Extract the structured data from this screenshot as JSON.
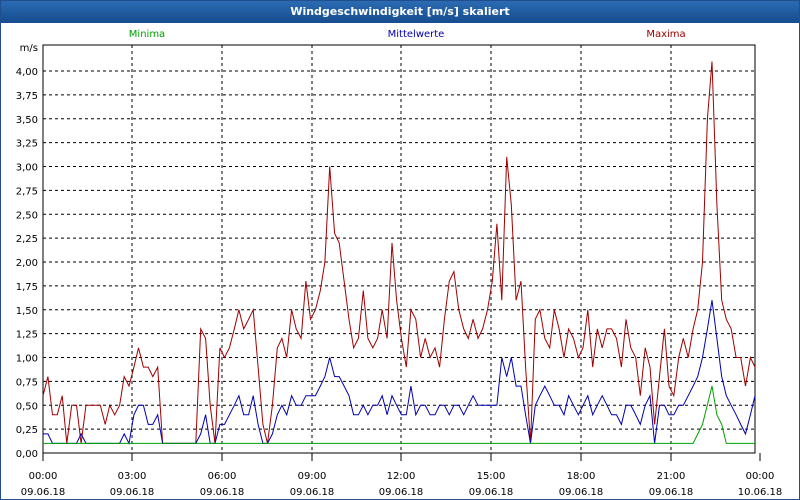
{
  "window": {
    "title": "Windgeschwindigkeit [m/s] skaliert"
  },
  "colors": {
    "minima": "#00a000",
    "mittel": "#0000b0",
    "maxima": "#a00000",
    "grid": "#000000",
    "titlebar": "#1f5aa0"
  },
  "chart_data": {
    "type": "line",
    "title": "Windgeschwindigkeit [m/s] skaliert",
    "ylabel": "m/s",
    "ylim": [
      0,
      4.25
    ],
    "yticks": [
      "0,00",
      "0,25",
      "0,50",
      "0,75",
      "1,00",
      "1,25",
      "1,50",
      "1,75",
      "2,00",
      "2,25",
      "2,50",
      "2,75",
      "3,00",
      "3,25",
      "3,50",
      "3,75",
      "4,00"
    ],
    "xlim": [
      0,
      24
    ],
    "xticks": [
      {
        "time": "00:00",
        "date": "09.06.18"
      },
      {
        "time": "03:00",
        "date": "09.06.18"
      },
      {
        "time": "06:00",
        "date": "09.06.18"
      },
      {
        "time": "09:00",
        "date": "09.06.18"
      },
      {
        "time": "12:00",
        "date": "09.06.18"
      },
      {
        "time": "15:00",
        "date": "09.06.18"
      },
      {
        "time": "18:00",
        "date": "09.06.18"
      },
      {
        "time": "21:00",
        "date": "09.06.18"
      },
      {
        "time": "00:00",
        "date": "10.06.18"
      }
    ],
    "legend": [
      "Minima",
      "Mittelwerte",
      "Maxima"
    ],
    "grid": true,
    "series": [
      {
        "name": "Maxima",
        "color": "#a00000",
        "points": [
          [
            0.0,
            0.6
          ],
          [
            0.17,
            0.8
          ],
          [
            0.33,
            0.4
          ],
          [
            0.5,
            0.4
          ],
          [
            0.67,
            0.6
          ],
          [
            0.83,
            0.1
          ],
          [
            1.0,
            0.5
          ],
          [
            1.17,
            0.5
          ],
          [
            1.33,
            0.1
          ],
          [
            1.5,
            0.5
          ],
          [
            1.67,
            0.5
          ],
          [
            1.83,
            0.5
          ],
          [
            2.0,
            0.5
          ],
          [
            2.17,
            0.3
          ],
          [
            2.33,
            0.5
          ],
          [
            2.5,
            0.4
          ],
          [
            2.67,
            0.5
          ],
          [
            2.83,
            0.8
          ],
          [
            3.0,
            0.7
          ],
          [
            3.17,
            0.9
          ],
          [
            3.33,
            1.1
          ],
          [
            3.5,
            0.9
          ],
          [
            3.67,
            0.9
          ],
          [
            3.83,
            0.8
          ],
          [
            4.0,
            0.9
          ],
          [
            4.17,
            0.1
          ],
          [
            4.33,
            0.1
          ],
          [
            4.5,
            0.1
          ],
          [
            4.67,
            0.1
          ],
          [
            4.83,
            0.1
          ],
          [
            5.0,
            0.1
          ],
          [
            5.17,
            0.1
          ],
          [
            5.33,
            0.1
          ],
          [
            5.5,
            1.3
          ],
          [
            5.67,
            1.2
          ],
          [
            5.83,
            0.5
          ],
          [
            6.0,
            0.1
          ],
          [
            6.17,
            1.1
          ],
          [
            6.33,
            1.0
          ],
          [
            6.5,
            1.1
          ],
          [
            6.67,
            1.3
          ],
          [
            6.83,
            1.5
          ],
          [
            7.0,
            1.3
          ],
          [
            7.17,
            1.4
          ],
          [
            7.33,
            1.5
          ],
          [
            7.5,
            0.9
          ],
          [
            7.67,
            0.3
          ],
          [
            7.83,
            0.1
          ],
          [
            8.0,
            0.5
          ],
          [
            8.17,
            1.1
          ],
          [
            8.33,
            1.2
          ],
          [
            8.5,
            1.0
          ],
          [
            8.67,
            1.5
          ],
          [
            8.83,
            1.3
          ],
          [
            9.0,
            1.2
          ],
          [
            9.17,
            1.8
          ],
          [
            9.33,
            1.4
          ],
          [
            9.5,
            1.5
          ],
          [
            9.67,
            1.7
          ],
          [
            9.83,
            2.0
          ],
          [
            10.0,
            3.0
          ],
          [
            10.17,
            2.3
          ],
          [
            10.33,
            2.2
          ],
          [
            10.5,
            1.8
          ],
          [
            10.67,
            1.4
          ],
          [
            10.83,
            1.1
          ],
          [
            11.0,
            1.2
          ],
          [
            11.17,
            1.7
          ],
          [
            11.33,
            1.2
          ],
          [
            11.5,
            1.1
          ],
          [
            11.67,
            1.2
          ],
          [
            11.83,
            1.5
          ],
          [
            12.0,
            1.2
          ],
          [
            12.17,
            2.2
          ],
          [
            12.33,
            1.6
          ],
          [
            12.5,
            1.2
          ],
          [
            12.67,
            0.9
          ],
          [
            12.83,
            1.5
          ],
          [
            13.0,
            1.4
          ],
          [
            13.17,
            1.0
          ],
          [
            13.33,
            1.2
          ],
          [
            13.5,
            1.0
          ],
          [
            13.67,
            1.1
          ],
          [
            13.83,
            0.9
          ],
          [
            14.0,
            1.4
          ],
          [
            14.17,
            1.8
          ],
          [
            14.33,
            1.9
          ],
          [
            14.5,
            1.5
          ],
          [
            14.67,
            1.3
          ],
          [
            14.83,
            1.2
          ],
          [
            15.0,
            1.4
          ],
          [
            15.17,
            1.2
          ],
          [
            15.33,
            1.3
          ],
          [
            15.5,
            1.5
          ],
          [
            15.67,
            1.8
          ],
          [
            15.83,
            2.4
          ],
          [
            16.0,
            1.6
          ],
          [
            16.17,
            3.1
          ],
          [
            16.33,
            2.6
          ],
          [
            16.5,
            1.6
          ],
          [
            16.67,
            1.8
          ],
          [
            16.83,
            0.9
          ],
          [
            17.0,
            0.1
          ],
          [
            17.17,
            1.4
          ],
          [
            17.33,
            1.5
          ],
          [
            17.5,
            1.2
          ],
          [
            17.67,
            1.1
          ],
          [
            17.83,
            1.5
          ],
          [
            18.0,
            1.3
          ],
          [
            18.17,
            1.0
          ],
          [
            18.33,
            1.3
          ],
          [
            18.5,
            1.2
          ],
          [
            18.67,
            1.0
          ],
          [
            18.83,
            1.1
          ],
          [
            19.0,
            1.5
          ],
          [
            19.17,
            0.9
          ],
          [
            19.33,
            1.3
          ],
          [
            19.5,
            1.1
          ],
          [
            19.67,
            1.3
          ],
          [
            19.83,
            1.3
          ],
          [
            20.0,
            1.2
          ],
          [
            20.17,
            0.9
          ],
          [
            20.33,
            1.4
          ],
          [
            20.5,
            1.1
          ],
          [
            20.67,
            1.0
          ],
          [
            20.83,
            0.6
          ],
          [
            21.0,
            1.1
          ],
          [
            21.17,
            0.9
          ],
          [
            21.33,
            0.3
          ],
          [
            21.5,
            0.8
          ],
          [
            21.67,
            1.3
          ],
          [
            21.83,
            0.7
          ],
          [
            22.0,
            0.6
          ],
          [
            22.17,
            1.0
          ],
          [
            22.33,
            1.2
          ],
          [
            22.5,
            1.0
          ],
          [
            22.67,
            1.3
          ],
          [
            22.83,
            1.5
          ],
          [
            23.0,
            2.0
          ],
          [
            23.17,
            3.5
          ],
          [
            23.33,
            4.1
          ],
          [
            23.5,
            2.6
          ],
          [
            23.67,
            1.6
          ],
          [
            23.83,
            1.4
          ],
          [
            24.0,
            1.3
          ],
          [
            24.17,
            1.0
          ],
          [
            24.33,
            1.0
          ],
          [
            24.5,
            0.7
          ],
          [
            24.67,
            1.0
          ],
          [
            24.83,
            0.9
          ]
        ]
      },
      {
        "name": "Mittelwerte",
        "color": "#0000b0",
        "points": [
          [
            0.0,
            0.2
          ],
          [
            0.17,
            0.2
          ],
          [
            0.33,
            0.1
          ],
          [
            0.5,
            0.1
          ],
          [
            0.67,
            0.1
          ],
          [
            0.83,
            0.1
          ],
          [
            1.0,
            0.1
          ],
          [
            1.17,
            0.1
          ],
          [
            1.33,
            0.2
          ],
          [
            1.5,
            0.1
          ],
          [
            1.67,
            0.1
          ],
          [
            1.83,
            0.1
          ],
          [
            2.0,
            0.1
          ],
          [
            2.17,
            0.1
          ],
          [
            2.33,
            0.1
          ],
          [
            2.5,
            0.1
          ],
          [
            2.67,
            0.1
          ],
          [
            2.83,
            0.2
          ],
          [
            3.0,
            0.1
          ],
          [
            3.17,
            0.4
          ],
          [
            3.33,
            0.5
          ],
          [
            3.5,
            0.5
          ],
          [
            3.67,
            0.3
          ],
          [
            3.83,
            0.3
          ],
          [
            4.0,
            0.4
          ],
          [
            4.17,
            0.1
          ],
          [
            4.33,
            0.1
          ],
          [
            4.5,
            0.1
          ],
          [
            4.67,
            0.1
          ],
          [
            4.83,
            0.1
          ],
          [
            5.0,
            0.1
          ],
          [
            5.17,
            0.1
          ],
          [
            5.33,
            0.1
          ],
          [
            5.5,
            0.2
          ],
          [
            5.67,
            0.4
          ],
          [
            5.83,
            0.1
          ],
          [
            6.0,
            0.1
          ],
          [
            6.17,
            0.3
          ],
          [
            6.33,
            0.3
          ],
          [
            6.5,
            0.4
          ],
          [
            6.67,
            0.5
          ],
          [
            6.83,
            0.6
          ],
          [
            7.0,
            0.4
          ],
          [
            7.17,
            0.4
          ],
          [
            7.33,
            0.6
          ],
          [
            7.5,
            0.3
          ],
          [
            7.67,
            0.1
          ],
          [
            7.83,
            0.1
          ],
          [
            8.0,
            0.2
          ],
          [
            8.17,
            0.4
          ],
          [
            8.33,
            0.5
          ],
          [
            8.5,
            0.4
          ],
          [
            8.67,
            0.6
          ],
          [
            8.83,
            0.5
          ],
          [
            9.0,
            0.5
          ],
          [
            9.17,
            0.6
          ],
          [
            9.33,
            0.6
          ],
          [
            9.5,
            0.6
          ],
          [
            9.67,
            0.7
          ],
          [
            9.83,
            0.8
          ],
          [
            10.0,
            1.0
          ],
          [
            10.17,
            0.8
          ],
          [
            10.33,
            0.8
          ],
          [
            10.5,
            0.7
          ],
          [
            10.67,
            0.6
          ],
          [
            10.83,
            0.4
          ],
          [
            11.0,
            0.4
          ],
          [
            11.17,
            0.5
          ],
          [
            11.33,
            0.4
          ],
          [
            11.5,
            0.5
          ],
          [
            11.67,
            0.5
          ],
          [
            11.83,
            0.6
          ],
          [
            12.0,
            0.4
          ],
          [
            12.17,
            0.6
          ],
          [
            12.33,
            0.5
          ],
          [
            12.5,
            0.4
          ],
          [
            12.67,
            0.4
          ],
          [
            12.83,
            0.7
          ],
          [
            13.0,
            0.4
          ],
          [
            13.17,
            0.5
          ],
          [
            13.33,
            0.5
          ],
          [
            13.5,
            0.4
          ],
          [
            13.67,
            0.4
          ],
          [
            13.83,
            0.5
          ],
          [
            14.0,
            0.5
          ],
          [
            14.17,
            0.4
          ],
          [
            14.33,
            0.5
          ],
          [
            14.5,
            0.5
          ],
          [
            14.67,
            0.4
          ],
          [
            14.83,
            0.5
          ],
          [
            15.0,
            0.6
          ],
          [
            15.17,
            0.5
          ],
          [
            15.33,
            0.5
          ],
          [
            15.5,
            0.5
          ],
          [
            15.67,
            0.5
          ],
          [
            15.83,
            0.5
          ],
          [
            16.0,
            1.0
          ],
          [
            16.17,
            0.8
          ],
          [
            16.33,
            1.0
          ],
          [
            16.5,
            0.7
          ],
          [
            16.67,
            0.7
          ],
          [
            16.83,
            0.4
          ],
          [
            17.0,
            0.1
          ],
          [
            17.17,
            0.5
          ],
          [
            17.33,
            0.6
          ],
          [
            17.5,
            0.7
          ],
          [
            17.67,
            0.6
          ],
          [
            17.83,
            0.5
          ],
          [
            18.0,
            0.5
          ],
          [
            18.17,
            0.4
          ],
          [
            18.33,
            0.6
          ],
          [
            18.5,
            0.5
          ],
          [
            18.67,
            0.4
          ],
          [
            18.83,
            0.5
          ],
          [
            19.0,
            0.6
          ],
          [
            19.17,
            0.4
          ],
          [
            19.33,
            0.5
          ],
          [
            19.5,
            0.6
          ],
          [
            19.67,
            0.5
          ],
          [
            19.83,
            0.4
          ],
          [
            20.0,
            0.4
          ],
          [
            20.17,
            0.3
          ],
          [
            20.33,
            0.5
          ],
          [
            20.5,
            0.5
          ],
          [
            20.67,
            0.4
          ],
          [
            20.83,
            0.3
          ],
          [
            21.0,
            0.5
          ],
          [
            21.17,
            0.6
          ],
          [
            21.33,
            0.1
          ],
          [
            21.5,
            0.5
          ],
          [
            21.67,
            0.5
          ],
          [
            21.83,
            0.4
          ],
          [
            22.0,
            0.4
          ],
          [
            22.17,
            0.5
          ],
          [
            22.33,
            0.5
          ],
          [
            22.5,
            0.6
          ],
          [
            22.67,
            0.7
          ],
          [
            22.83,
            0.8
          ],
          [
            23.0,
            1.0
          ],
          [
            23.17,
            1.3
          ],
          [
            23.33,
            1.6
          ],
          [
            23.5,
            1.2
          ],
          [
            23.67,
            0.8
          ],
          [
            23.83,
            0.6
          ],
          [
            24.0,
            0.5
          ],
          [
            24.17,
            0.4
          ],
          [
            24.33,
            0.3
          ],
          [
            24.5,
            0.2
          ],
          [
            24.67,
            0.4
          ],
          [
            24.83,
            0.6
          ]
        ]
      },
      {
        "name": "Minima",
        "color": "#00a000",
        "points": [
          [
            0.0,
            0.1
          ],
          [
            22.67,
            0.1
          ],
          [
            23.0,
            0.3
          ],
          [
            23.33,
            0.7
          ],
          [
            23.5,
            0.4
          ],
          [
            23.67,
            0.3
          ],
          [
            23.83,
            0.1
          ],
          [
            24.83,
            0.1
          ]
        ]
      }
    ]
  }
}
